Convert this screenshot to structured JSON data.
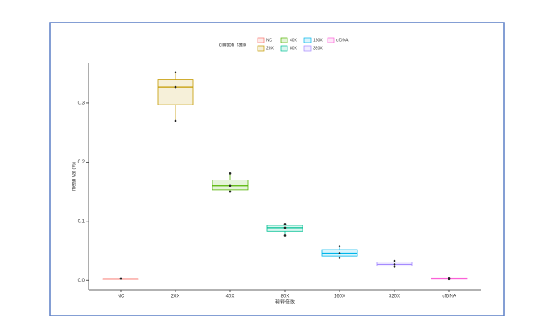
{
  "chart_data": {
    "type": "box",
    "x_label": "稀释倍数",
    "y_label": "mean vaf (%)",
    "legend_title": "dilution_ratio",
    "categories": [
      "NC",
      "20X",
      "40X",
      "80X",
      "160X",
      "320X",
      "cfDNA"
    ],
    "colors": [
      "#F8766D",
      "#C49A00",
      "#53B400",
      "#00C094",
      "#00B6EB",
      "#A58AFF",
      "#FB61D7"
    ],
    "boxes": [
      {
        "min": 0.003,
        "q1": 0.003,
        "median": 0.003,
        "q3": 0.003,
        "max": 0.003
      },
      {
        "min": 0.27,
        "q1": 0.297,
        "median": 0.327,
        "q3": 0.34,
        "max": 0.352
      },
      {
        "min": 0.15,
        "q1": 0.153,
        "median": 0.16,
        "q3": 0.17,
        "max": 0.181
      },
      {
        "min": 0.076,
        "q1": 0.083,
        "median": 0.089,
        "q3": 0.093,
        "max": 0.095
      },
      {
        "min": 0.038,
        "q1": 0.041,
        "median": 0.046,
        "q3": 0.052,
        "max": 0.058
      },
      {
        "min": 0.023,
        "q1": 0.024,
        "median": 0.027,
        "q3": 0.031,
        "max": 0.033
      },
      {
        "min": 0.002,
        "q1": 0.002,
        "median": 0.003,
        "q3": 0.004,
        "max": 0.004
      }
    ],
    "ylim": [
      -0.016,
      0.368
    ],
    "yticks": [
      {
        "value": 0,
        "label": "0.0"
      },
      0.1,
      0.2,
      0.3
    ],
    "legend_position": "top"
  }
}
